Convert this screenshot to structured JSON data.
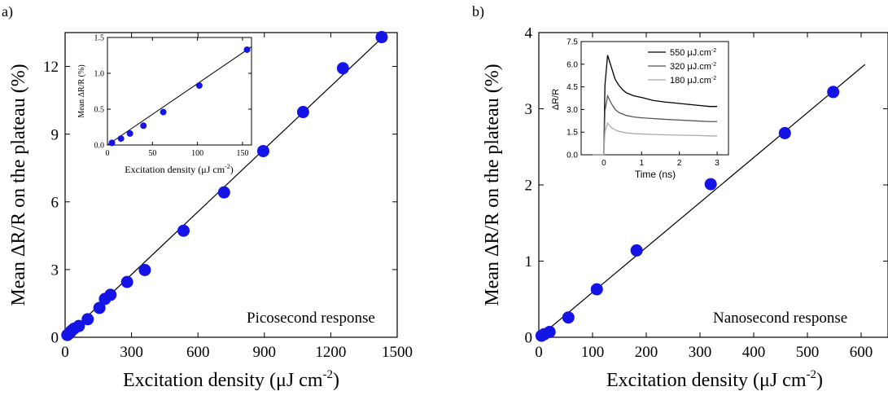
{
  "figure": {
    "panel_a_label": "a)",
    "panel_b_label": "b)"
  },
  "chart_data": [
    {
      "type": "scatter",
      "panel": "a)",
      "annotation": "Picosecond response",
      "xlabel": "Excitation density (μJ cm",
      "xlabel_sup": "-2",
      "xlabel_end": ")",
      "ylabel": "Mean ΔR/R on the plateau  (%)",
      "xlim": [
        0,
        1500
      ],
      "ylim": [
        0,
        13.5
      ],
      "xticks": [
        "0",
        "300",
        "600",
        "900",
        "1200",
        "1500"
      ],
      "yticks": [
        "0",
        "3",
        "6",
        "9",
        "12"
      ],
      "xtick_values": [
        0,
        300,
        600,
        900,
        1200,
        1500
      ],
      "ytick_values": [
        0,
        3,
        6,
        9,
        12
      ],
      "points": [
        [
          10,
          0.1
        ],
        [
          20,
          0.18
        ],
        [
          28,
          0.28
        ],
        [
          40,
          0.38
        ],
        [
          62,
          0.5
        ],
        [
          102,
          0.8
        ],
        [
          155,
          1.3
        ],
        [
          180,
          1.7
        ],
        [
          205,
          1.88
        ],
        [
          280,
          2.45
        ],
        [
          360,
          2.98
        ],
        [
          535,
          4.72
        ],
        [
          718,
          6.42
        ],
        [
          895,
          8.25
        ],
        [
          1075,
          9.98
        ],
        [
          1255,
          11.92
        ],
        [
          1430,
          13.3
        ]
      ],
      "fit_line": [
        [
          0,
          0
        ],
        [
          1450,
          13.44
        ]
      ],
      "color": "#1414e6",
      "inset": {
        "type": "scatter",
        "xlabel": "Excitation density (μJ cm",
        "xlabel_sup": "-2",
        "xlabel_end": ")",
        "ylabel": "Mean ΔR/R  (%)",
        "xlim": [
          0,
          160
        ],
        "ylim": [
          0,
          1.5
        ],
        "xticks": [
          "0",
          "50",
          "100",
          "150"
        ],
        "yticks": [
          "0.0",
          "0.5",
          "1.0",
          "1.5"
        ],
        "xtick_values": [
          0,
          50,
          100,
          150
        ],
        "ytick_values": [
          0,
          0.5,
          1.0,
          1.5
        ],
        "points": [
          [
            5,
            0.03
          ],
          [
            15,
            0.09
          ],
          [
            25,
            0.16
          ],
          [
            40,
            0.27
          ],
          [
            62,
            0.46
          ],
          [
            102,
            0.83
          ],
          [
            155,
            1.33
          ]
        ],
        "fit_line": [
          [
            0,
            0
          ],
          [
            160,
            1.37
          ]
        ]
      }
    },
    {
      "type": "scatter",
      "panel": "b)",
      "annotation": "Nanosecond response",
      "xlabel": "Excitation density (μJ cm",
      "xlabel_sup": "-2",
      "xlabel_end": ")",
      "ylabel": "Mean ΔR/R on the plateau  (%)",
      "xlim": [
        0,
        650
      ],
      "ylim": [
        0,
        4
      ],
      "xticks": [
        "0",
        "100",
        "200",
        "300",
        "400",
        "500",
        "600"
      ],
      "yticks": [
        "0",
        "1",
        "2",
        "3",
        "4"
      ],
      "xtick_values": [
        0,
        100,
        200,
        300,
        400,
        500,
        600
      ],
      "ytick_values": [
        0,
        1,
        2,
        3,
        4
      ],
      "points": [
        [
          5,
          0.02
        ],
        [
          10,
          0.04
        ],
        [
          20,
          0.07
        ],
        [
          55,
          0.26
        ],
        [
          108,
          0.63
        ],
        [
          182,
          1.14
        ],
        [
          320,
          2.01
        ],
        [
          458,
          2.68
        ],
        [
          548,
          3.22
        ]
      ],
      "fit_line": [
        [
          0,
          0
        ],
        [
          607,
          3.58
        ]
      ],
      "color": "#1414e6",
      "inset": {
        "type": "line",
        "xlabel": "Time (ns)",
        "ylabel": "ΔR/R",
        "xlim": [
          -0.6,
          3.3
        ],
        "ylim": [
          0,
          7.5
        ],
        "xticks": [
          "0",
          "1",
          "2",
          "3"
        ],
        "yticks": [
          "0.0",
          "1.5",
          "3.0",
          "4.5",
          "6.0",
          "7.5"
        ],
        "xtick_values": [
          0,
          1,
          2,
          3
        ],
        "ytick_values": [
          0,
          1.5,
          3.0,
          4.5,
          6.0,
          7.5
        ],
        "series": [
          {
            "name": "550 μJ.cm",
            "name_sup": "-2",
            "color": "#000000",
            "x": [
              -0.3,
              0,
              0.03,
              0.1,
              0.2,
              0.3,
              0.4,
              0.5,
              0.6,
              0.8,
              1.0,
              1.3,
              1.6,
              2.0,
              2.4,
              2.8,
              3.0
            ],
            "y": [
              0,
              0,
              4.6,
              6.6,
              5.8,
              5.0,
              4.6,
              4.3,
              4.1,
              3.9,
              3.8,
              3.6,
              3.5,
              3.4,
              3.3,
              3.2,
              3.2
            ]
          },
          {
            "name": "320 μJ.cm",
            "name_sup": "-2",
            "color": "#555555",
            "x": [
              -0.3,
              0,
              0.03,
              0.1,
              0.2,
              0.3,
              0.4,
              0.5,
              0.6,
              0.8,
              1.0,
              1.3,
              1.6,
              2.0,
              2.4,
              2.8,
              3.0
            ],
            "y": [
              0,
              0,
              2.9,
              3.9,
              3.4,
              3.0,
              2.8,
              2.7,
              2.6,
              2.5,
              2.45,
              2.4,
              2.35,
              2.3,
              2.25,
              2.2,
              2.2
            ]
          },
          {
            "name": "180 μJ.cm",
            "name_sup": "-2",
            "color": "#aaaaaa",
            "x": [
              -0.3,
              0,
              0.03,
              0.1,
              0.2,
              0.3,
              0.4,
              0.5,
              0.6,
              0.8,
              1.0,
              1.3,
              1.6,
              2.0,
              2.4,
              2.8,
              3.0
            ],
            "y": [
              0,
              0,
              1.5,
              2.1,
              1.8,
              1.65,
              1.55,
              1.5,
              1.45,
              1.4,
              1.38,
              1.35,
              1.32,
              1.3,
              1.28,
              1.25,
              1.25
            ]
          }
        ]
      }
    }
  ]
}
